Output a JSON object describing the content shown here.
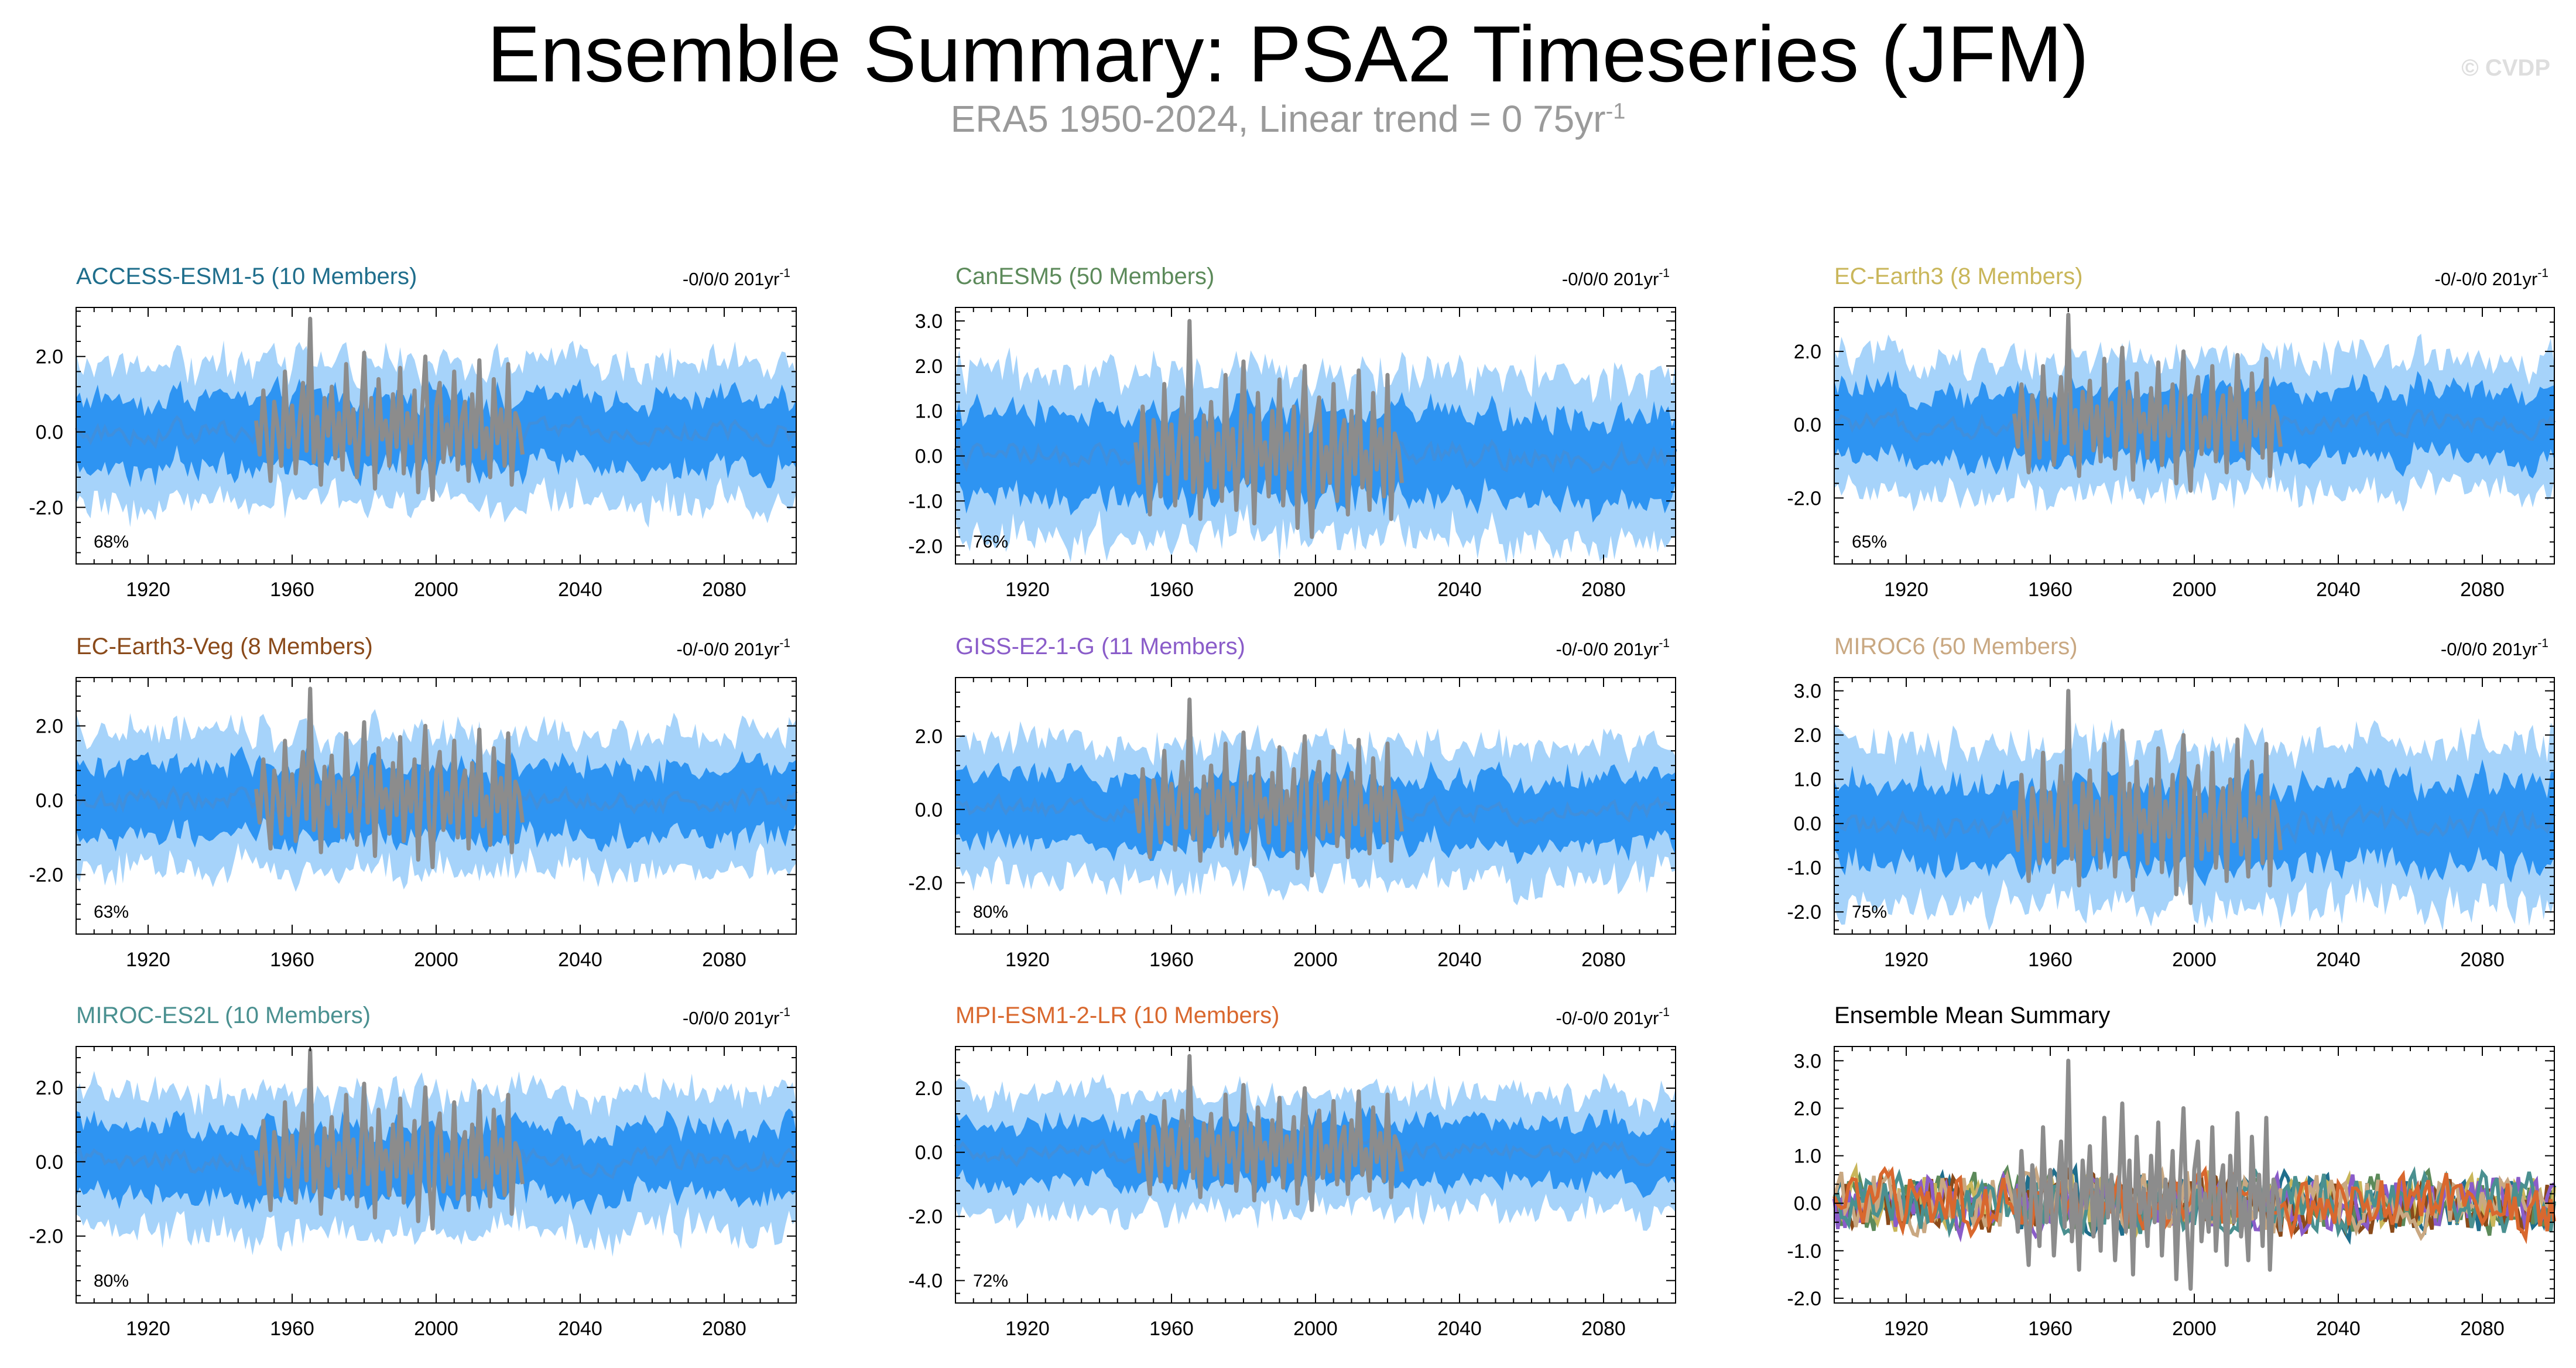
{
  "title": "Ensemble Summary: PSA2 Timeseries (JFM)",
  "subtitle": {
    "text": "ERA5 1950-2024, Linear trend = 0 75yr",
    "sup": "-1"
  },
  "watermark": "© CVDP",
  "colors": {
    "band_outer": "#a6d3fa",
    "band_inner": "#2e94f2",
    "ens_mean": "#3f8fdd",
    "obs": "#8c8c8c",
    "axis": "#000000"
  },
  "chart_data": [
    {
      "type": "line",
      "title": "ACCESS-ESM1-5 (10 Members)",
      "title_color": "#1f6e8c",
      "trend": "-0/0/0 201yr",
      "percent": "68%",
      "xlim": [
        1900,
        2100
      ],
      "ylim": [
        -3.5,
        3.3
      ],
      "xticks": [
        1920,
        1960,
        2000,
        2040,
        2080
      ],
      "yticks": [
        -2.0,
        0.0,
        2.0
      ],
      "ytick_labels": [
        "-2.0",
        "0.0",
        "2.0"
      ],
      "amp": 1.0
    },
    {
      "type": "line",
      "title": "CanESM5 (50 Members)",
      "title_color": "#5c8a5a",
      "trend": "-0/0/0 201yr",
      "percent": "76%",
      "xlim": [
        1900,
        2100
      ],
      "ylim": [
        -2.4,
        3.3
      ],
      "xticks": [
        1920,
        1960,
        2000,
        2040,
        2080
      ],
      "yticks": [
        -2.0,
        -1.0,
        0.0,
        1.0,
        2.0,
        3.0
      ],
      "ytick_labels": [
        "-2.0",
        "-1.0",
        "0.0",
        "1.0",
        "2.0",
        "3.0"
      ],
      "amp": 1.0
    },
    {
      "type": "line",
      "title": "EC-Earth3 (8 Members)",
      "title_color": "#c9b65a",
      "trend": "-0/-0/0 201yr",
      "percent": "65%",
      "xlim": [
        1900,
        2100
      ],
      "ylim": [
        -3.8,
        3.2
      ],
      "xticks": [
        1920,
        1960,
        2000,
        2040,
        2080
      ],
      "yticks": [
        -2.0,
        0.0,
        2.0
      ],
      "ytick_labels": [
        "-2.0",
        "0.0",
        "2.0"
      ],
      "amp": 1.0
    },
    {
      "type": "line",
      "title": "EC-Earth3-Veg (8 Members)",
      "title_color": "#8a4a1a",
      "trend": "-0/-0/0 201yr",
      "percent": "63%",
      "xlim": [
        1900,
        2100
      ],
      "ylim": [
        -3.6,
        3.3
      ],
      "xticks": [
        1920,
        1960,
        2000,
        2040,
        2080
      ],
      "yticks": [
        -2.0,
        0.0,
        2.0
      ],
      "ytick_labels": [
        "-2.0",
        "0.0",
        "2.0"
      ],
      "amp": 1.0
    },
    {
      "type": "line",
      "title": "GISS-E2-1-G (11 Members)",
      "title_color": "#8a5cc9",
      "trend": "-0/-0/0 201yr",
      "percent": "80%",
      "xlim": [
        1900,
        2100
      ],
      "ylim": [
        -3.4,
        3.6
      ],
      "xticks": [
        1920,
        1960,
        2000,
        2040,
        2080
      ],
      "yticks": [
        -2.0,
        0.0,
        2.0
      ],
      "ytick_labels": [
        "-2.0",
        "0.0",
        "2.0"
      ],
      "amp": 1.0
    },
    {
      "type": "line",
      "title": "MIROC6 (50 Members)",
      "title_color": "#c9a882",
      "trend": "-0/0/0 201yr",
      "percent": "75%",
      "xlim": [
        1900,
        2100
      ],
      "ylim": [
        -2.5,
        3.3
      ],
      "xticks": [
        1920,
        1960,
        2000,
        2040,
        2080
      ],
      "yticks": [
        -2.0,
        -1.0,
        0.0,
        1.0,
        2.0,
        3.0
      ],
      "ytick_labels": [
        "-2.0",
        "-1.0",
        "0.0",
        "1.0",
        "2.0",
        "3.0"
      ],
      "amp": 1.0
    },
    {
      "type": "line",
      "title": "MIROC-ES2L (10 Members)",
      "title_color": "#4a9090",
      "trend": "-0/0/0 201yr",
      "percent": "80%",
      "xlim": [
        1900,
        2100
      ],
      "ylim": [
        -3.8,
        3.1
      ],
      "xticks": [
        1920,
        1960,
        2000,
        2040,
        2080
      ],
      "yticks": [
        -2.0,
        0.0,
        2.0
      ],
      "ytick_labels": [
        "-2.0",
        "0.0",
        "2.0"
      ],
      "amp": 1.0
    },
    {
      "type": "line",
      "title": "MPI-ESM1-2-LR (10 Members)",
      "title_color": "#d9682e",
      "trend": "-0/-0/0 201yr",
      "percent": "72%",
      "xlim": [
        1900,
        2100
      ],
      "ylim": [
        -4.7,
        3.3
      ],
      "xticks": [
        1920,
        1960,
        2000,
        2040,
        2080
      ],
      "yticks": [
        -4.0,
        -2.0,
        0.0,
        2.0
      ],
      "ytick_labels": [
        "-4.0",
        "-2.0",
        "0.0",
        "2.0"
      ],
      "amp": 1.0
    },
    {
      "type": "line",
      "title": "Ensemble Mean Summary",
      "title_color": "#000000",
      "trend": "",
      "percent": "",
      "summary": true,
      "xlim": [
        1900,
        2100
      ],
      "ylim": [
        -2.1,
        3.3
      ],
      "xticks": [
        1920,
        1960,
        2000,
        2040,
        2080
      ],
      "yticks": [
        -2.0,
        -1.0,
        0.0,
        1.0,
        2.0,
        3.0
      ],
      "ytick_labels": [
        "-2.0",
        "-1.0",
        "0.0",
        "1.0",
        "2.0",
        "3.0"
      ],
      "series_colors": [
        "#1f6e8c",
        "#5c8a5a",
        "#c9b65a",
        "#8a4a1a",
        "#8a5cc9",
        "#c9a882",
        "#4a9090",
        "#d9682e"
      ]
    }
  ],
  "obs_series": {
    "name": "ERA5",
    "x_start": 1950,
    "values": [
      0.3,
      -0.6,
      1.1,
      -0.2,
      -1.3,
      0.8,
      0.1,
      -0.9,
      1.6,
      -0.4,
      0.7,
      -1.1,
      0.2,
      1.3,
      -0.5,
      3.0,
      -0.8,
      0.4,
      -1.4,
      0.9,
      -0.1,
      1.2,
      -0.7,
      0.5,
      -1.0,
      1.8,
      -0.3,
      0.6,
      -1.2,
      0.2,
      2.1,
      -0.6,
      0.9,
      -1.5,
      1.4,
      -0.2,
      0.3,
      -0.9,
      1.0,
      -0.4,
      1.7,
      -1.1,
      0.5,
      -0.3,
      1.1,
      -1.6,
      0.4,
      2.0,
      -0.5,
      -1.8,
      0.7,
      1.3,
      -0.8,
      0.2,
      -0.6,
      1.6,
      -1.0,
      0.3,
      0.8,
      -1.3,
      1.0,
      -0.4,
      1.9,
      -0.7,
      0.1,
      -1.2,
      1.4,
      -0.3,
      0.6,
      -0.9,
      1.8,
      -1.4,
      0.5,
      0.2,
      -0.6
    ]
  }
}
